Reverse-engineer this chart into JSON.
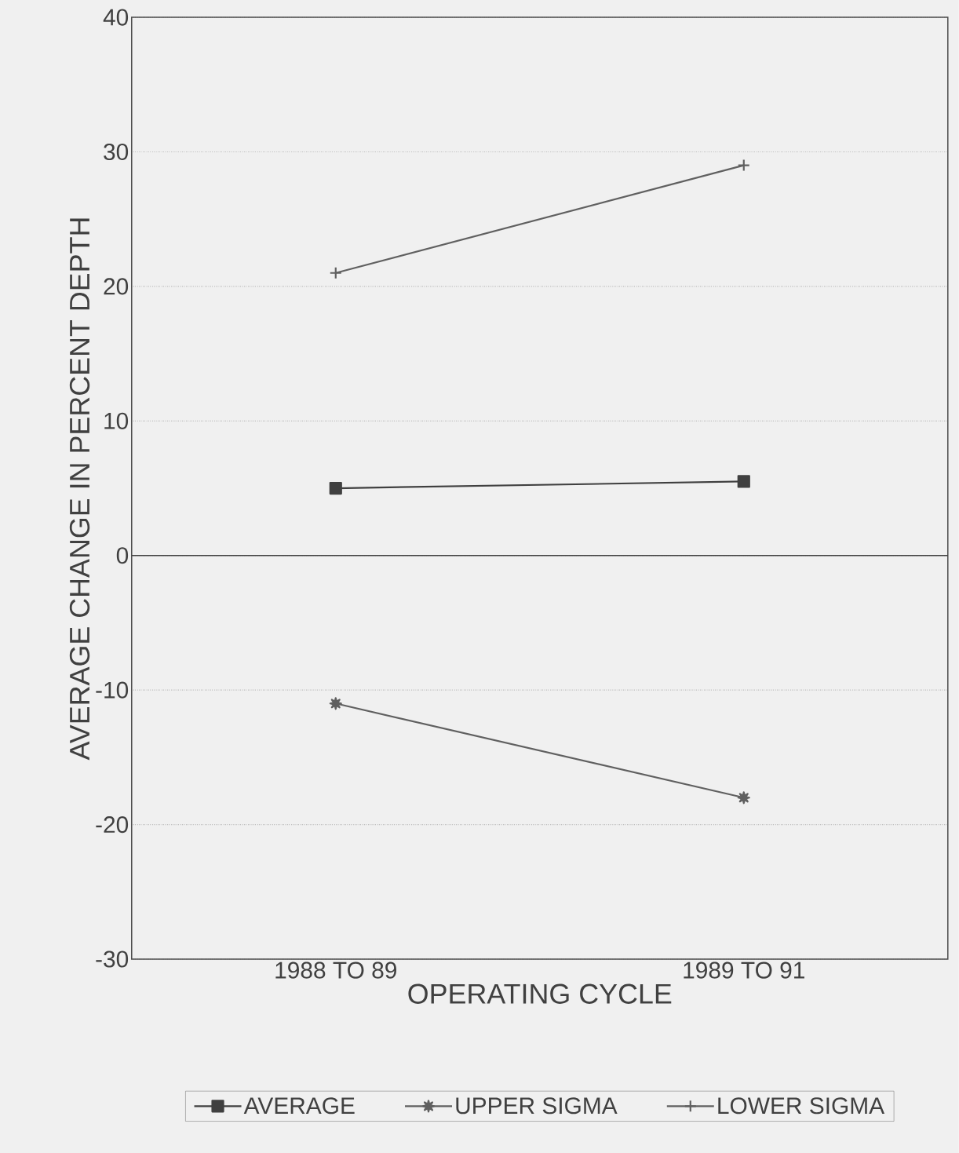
{
  "chart_data": {
    "type": "line",
    "xlabel": "OPERATING CYCLE",
    "ylabel": "AVERAGE CHANGE IN PERCENT DEPTH",
    "categories": [
      "1988 TO 89",
      "1989 TO 91"
    ],
    "series": [
      {
        "name": "AVERAGE",
        "color": "#404040",
        "marker": "square",
        "values": [
          5,
          5.5
        ]
      },
      {
        "name": "UPPER SIGMA",
        "color": "#606060",
        "marker": "star",
        "values": [
          -11,
          -18
        ]
      },
      {
        "name": "LOWER SIGMA",
        "color": "#606060",
        "marker": "cross",
        "values": [
          21,
          29
        ]
      }
    ],
    "ylim": [
      -30,
      40
    ],
    "yticks": [
      -30,
      -20,
      -10,
      0,
      10,
      20,
      30,
      40
    ],
    "ref_lines": [
      {
        "axis": "y",
        "value": 0,
        "color": "#404040",
        "line_style": "solid"
      }
    ],
    "grid": "y",
    "legend": "bottom",
    "line_style": "solid"
  }
}
